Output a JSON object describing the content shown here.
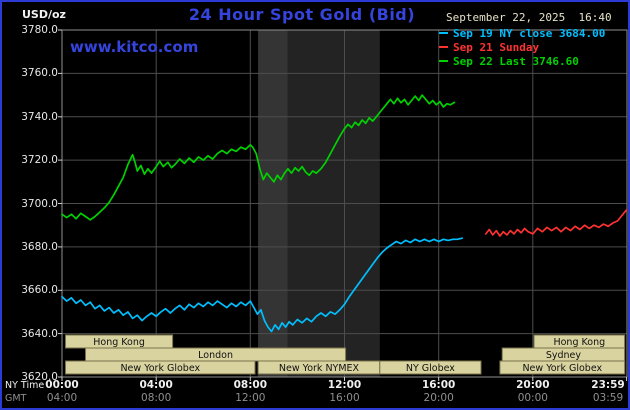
{
  "header": {
    "unit_label": "USD/oz",
    "title": "24 Hour Spot Gold (Bid)",
    "datetime": "September 22, 2025  16:40",
    "watermark": "www.kitco.com",
    "legend": [
      {
        "label": "Sep 19 NY close 3684.00",
        "color": "#00bfff"
      },
      {
        "label": "Sep 21 Sunday",
        "color": "#ff3232"
      },
      {
        "label": "Sep 22 Last 3746.60",
        "color": "#00d200"
      }
    ]
  },
  "axes": {
    "ny_time_label": "NY Time",
    "gmt_label": "GMT",
    "x_ticks_ny": [
      "00:00",
      "04:00",
      "08:00",
      "12:00",
      "16:00",
      "20:00",
      "23:59"
    ],
    "x_ticks_gmt": [
      "04:00",
      "08:00",
      "12:00",
      "16:00",
      "20:00",
      "00:00",
      "03:59"
    ],
    "x_tick_hours": [
      0,
      4,
      8,
      12,
      16,
      20,
      23.983
    ],
    "y_ticks": [
      "3780.0",
      "3760.0",
      "3740.0",
      "3720.0",
      "3700.0",
      "3680.0",
      "3660.0",
      "3640.0",
      "3620.0"
    ],
    "y_tick_values": [
      3780,
      3760,
      3740,
      3720,
      3700,
      3680,
      3660,
      3640,
      3620
    ]
  },
  "chart_data": {
    "type": "line",
    "title": "24 Hour Spot Gold (Bid)",
    "x_axis": {
      "label": "NY Time",
      "range_hours": [
        0,
        24
      ],
      "gridline_hours": [
        4,
        8,
        12,
        16,
        20
      ]
    },
    "y_axis": {
      "label": "USD/oz",
      "range": [
        3620,
        3780
      ],
      "tick_step": 20,
      "gridlines": [
        3760,
        3740,
        3720,
        3700,
        3680,
        3660,
        3640
      ]
    },
    "grid": true,
    "legend_position": "top-right",
    "shaded_bands_hours": [
      [
        8.33,
        13.5
      ],
      [
        8.33,
        9.58
      ]
    ],
    "shaded_band_colors": [
      "#232323",
      "#343434"
    ],
    "session_fill": "#d9d3a0",
    "sessions": [
      {
        "row": 1,
        "start": 0.15,
        "end": 4.7,
        "label": "Hong Kong"
      },
      {
        "row": 2,
        "start": 1.0,
        "end": 12.05,
        "label": "London"
      },
      {
        "row": 3,
        "start": 0.15,
        "end": 8.2,
        "label": "New York Globex"
      },
      {
        "row": 3,
        "start": 8.33,
        "end": 13.5,
        "label": "New York NYMEX"
      },
      {
        "row": 3,
        "start": 13.5,
        "end": 17.8,
        "label": "NY Globex"
      },
      {
        "row": 2,
        "start": 18.7,
        "end": 23.9,
        "label": "Sydney"
      },
      {
        "row": 1,
        "start": 20.05,
        "end": 23.9,
        "label": "Hong Kong"
      },
      {
        "row": 3,
        "start": 18.6,
        "end": 23.9,
        "label": "New York Globex"
      }
    ],
    "series": [
      {
        "name": "Sep 19 NY close 3684.00",
        "close": 3684.0,
        "color": "#00bfff",
        "points": [
          [
            0,
            3657
          ],
          [
            0.2,
            3655
          ],
          [
            0.4,
            3656.5
          ],
          [
            0.6,
            3654
          ],
          [
            0.8,
            3655.5
          ],
          [
            1,
            3653
          ],
          [
            1.2,
            3654.5
          ],
          [
            1.4,
            3651.5
          ],
          [
            1.6,
            3653
          ],
          [
            1.8,
            3650.5
          ],
          [
            2,
            3652
          ],
          [
            2.2,
            3649.5
          ],
          [
            2.4,
            3651
          ],
          [
            2.6,
            3648.5
          ],
          [
            2.8,
            3650
          ],
          [
            3,
            3647
          ],
          [
            3.2,
            3648.5
          ],
          [
            3.4,
            3646
          ],
          [
            3.6,
            3648
          ],
          [
            3.8,
            3649.5
          ],
          [
            4,
            3648
          ],
          [
            4.2,
            3650
          ],
          [
            4.4,
            3651.5
          ],
          [
            4.6,
            3649.5
          ],
          [
            4.8,
            3651.5
          ],
          [
            5,
            3653
          ],
          [
            5.2,
            3651
          ],
          [
            5.4,
            3653.5
          ],
          [
            5.6,
            3652
          ],
          [
            5.8,
            3654
          ],
          [
            6,
            3652.5
          ],
          [
            6.2,
            3654.5
          ],
          [
            6.4,
            3653
          ],
          [
            6.6,
            3655
          ],
          [
            6.8,
            3653.5
          ],
          [
            7,
            3652
          ],
          [
            7.2,
            3654
          ],
          [
            7.4,
            3652.5
          ],
          [
            7.6,
            3654.5
          ],
          [
            7.8,
            3653
          ],
          [
            8,
            3655
          ],
          [
            8.15,
            3652
          ],
          [
            8.3,
            3649
          ],
          [
            8.45,
            3651
          ],
          [
            8.6,
            3646
          ],
          [
            8.75,
            3643
          ],
          [
            8.9,
            3641
          ],
          [
            9.05,
            3644
          ],
          [
            9.2,
            3642
          ],
          [
            9.35,
            3645
          ],
          [
            9.5,
            3643
          ],
          [
            9.65,
            3645.5
          ],
          [
            9.8,
            3644
          ],
          [
            10,
            3646.5
          ],
          [
            10.2,
            3645
          ],
          [
            10.4,
            3647
          ],
          [
            10.6,
            3645.5
          ],
          [
            10.8,
            3648
          ],
          [
            11,
            3649.5
          ],
          [
            11.2,
            3648
          ],
          [
            11.4,
            3650
          ],
          [
            11.6,
            3649
          ],
          [
            11.8,
            3651
          ],
          [
            12,
            3653.5
          ],
          [
            12.2,
            3657
          ],
          [
            12.4,
            3660
          ],
          [
            12.6,
            3663
          ],
          [
            12.8,
            3666
          ],
          [
            13,
            3669
          ],
          [
            13.2,
            3672
          ],
          [
            13.4,
            3675
          ],
          [
            13.6,
            3677.5
          ],
          [
            13.8,
            3679.5
          ],
          [
            14,
            3681
          ],
          [
            14.2,
            3682.5
          ],
          [
            14.4,
            3681.5
          ],
          [
            14.6,
            3683
          ],
          [
            14.8,
            3682
          ],
          [
            15,
            3683.5
          ],
          [
            15.2,
            3682.5
          ],
          [
            15.4,
            3683.5
          ],
          [
            15.6,
            3682.5
          ],
          [
            15.8,
            3683.5
          ],
          [
            16,
            3682.5
          ],
          [
            16.2,
            3683.5
          ],
          [
            16.4,
            3683
          ],
          [
            16.6,
            3683.5
          ],
          [
            16.8,
            3683.5
          ],
          [
            17,
            3684
          ]
        ]
      },
      {
        "name": "Sep 21 Sunday",
        "color": "#ff3232",
        "points": [
          [
            18,
            3686
          ],
          [
            18.15,
            3688
          ],
          [
            18.3,
            3685.5
          ],
          [
            18.45,
            3687.5
          ],
          [
            18.6,
            3685
          ],
          [
            18.75,
            3687
          ],
          [
            18.9,
            3685.5
          ],
          [
            19.05,
            3687.5
          ],
          [
            19.2,
            3686
          ],
          [
            19.35,
            3688
          ],
          [
            19.5,
            3686.5
          ],
          [
            19.65,
            3688.5
          ],
          [
            19.8,
            3687
          ],
          [
            20,
            3686
          ],
          [
            20.2,
            3688.5
          ],
          [
            20.4,
            3687
          ],
          [
            20.6,
            3689
          ],
          [
            20.8,
            3687.5
          ],
          [
            21,
            3689
          ],
          [
            21.2,
            3687
          ],
          [
            21.4,
            3689
          ],
          [
            21.6,
            3687.5
          ],
          [
            21.8,
            3689.5
          ],
          [
            22,
            3688
          ],
          [
            22.2,
            3690
          ],
          [
            22.4,
            3688.5
          ],
          [
            22.6,
            3690
          ],
          [
            22.8,
            3689
          ],
          [
            23,
            3690.5
          ],
          [
            23.2,
            3689.5
          ],
          [
            23.4,
            3691
          ],
          [
            23.6,
            3692
          ],
          [
            23.75,
            3694
          ],
          [
            23.9,
            3696
          ],
          [
            23.98,
            3697
          ]
        ]
      },
      {
        "name": "Sep 22 Last 3746.60",
        "last": 3746.6,
        "color": "#00d200",
        "points": [
          [
            0,
            3695
          ],
          [
            0.2,
            3693.5
          ],
          [
            0.4,
            3695
          ],
          [
            0.6,
            3693
          ],
          [
            0.8,
            3695.5
          ],
          [
            1,
            3694
          ],
          [
            1.2,
            3692.5
          ],
          [
            1.4,
            3694
          ],
          [
            1.6,
            3696
          ],
          [
            1.8,
            3698
          ],
          [
            2,
            3700.5
          ],
          [
            2.2,
            3704
          ],
          [
            2.4,
            3708
          ],
          [
            2.6,
            3712
          ],
          [
            2.8,
            3718
          ],
          [
            3,
            3722.5
          ],
          [
            3.1,
            3719
          ],
          [
            3.2,
            3715
          ],
          [
            3.35,
            3717.5
          ],
          [
            3.5,
            3713.5
          ],
          [
            3.65,
            3716
          ],
          [
            3.8,
            3714
          ],
          [
            4,
            3717
          ],
          [
            4.15,
            3719.5
          ],
          [
            4.3,
            3717
          ],
          [
            4.5,
            3719
          ],
          [
            4.65,
            3716.5
          ],
          [
            4.8,
            3718
          ],
          [
            5,
            3720.5
          ],
          [
            5.2,
            3718.5
          ],
          [
            5.4,
            3721
          ],
          [
            5.6,
            3719
          ],
          [
            5.8,
            3721.5
          ],
          [
            6,
            3720
          ],
          [
            6.2,
            3722
          ],
          [
            6.4,
            3720.5
          ],
          [
            6.6,
            3723
          ],
          [
            6.8,
            3724.5
          ],
          [
            7,
            3723
          ],
          [
            7.2,
            3725
          ],
          [
            7.4,
            3724
          ],
          [
            7.6,
            3726
          ],
          [
            7.8,
            3725
          ],
          [
            8,
            3727
          ],
          [
            8.1,
            3726
          ],
          [
            8.25,
            3723
          ],
          [
            8.4,
            3716
          ],
          [
            8.55,
            3711
          ],
          [
            8.7,
            3714
          ],
          [
            8.85,
            3712
          ],
          [
            9,
            3710
          ],
          [
            9.15,
            3713
          ],
          [
            9.3,
            3711
          ],
          [
            9.45,
            3714
          ],
          [
            9.6,
            3716
          ],
          [
            9.75,
            3714
          ],
          [
            9.9,
            3716.5
          ],
          [
            10.05,
            3715
          ],
          [
            10.2,
            3717
          ],
          [
            10.35,
            3714.5
          ],
          [
            10.5,
            3713
          ],
          [
            10.65,
            3715
          ],
          [
            10.8,
            3714
          ],
          [
            11,
            3716
          ],
          [
            11.2,
            3719
          ],
          [
            11.4,
            3723
          ],
          [
            11.6,
            3727
          ],
          [
            11.8,
            3731
          ],
          [
            12,
            3734.5
          ],
          [
            12.15,
            3736.5
          ],
          [
            12.3,
            3735
          ],
          [
            12.45,
            3737.5
          ],
          [
            12.6,
            3736
          ],
          [
            12.75,
            3738.5
          ],
          [
            12.9,
            3737
          ],
          [
            13.05,
            3739.5
          ],
          [
            13.2,
            3738
          ],
          [
            13.35,
            3740
          ],
          [
            13.5,
            3742
          ],
          [
            13.65,
            3744
          ],
          [
            13.8,
            3746
          ],
          [
            13.95,
            3748
          ],
          [
            14.1,
            3746
          ],
          [
            14.25,
            3748.5
          ],
          [
            14.4,
            3746.5
          ],
          [
            14.55,
            3748
          ],
          [
            14.7,
            3745.5
          ],
          [
            14.85,
            3747.5
          ],
          [
            15,
            3749.5
          ],
          [
            15.15,
            3747.5
          ],
          [
            15.3,
            3750
          ],
          [
            15.45,
            3748
          ],
          [
            15.6,
            3746
          ],
          [
            15.75,
            3747.5
          ],
          [
            15.9,
            3745.5
          ],
          [
            16.05,
            3747
          ],
          [
            16.2,
            3744.5
          ],
          [
            16.35,
            3746
          ],
          [
            16.5,
            3745.5
          ],
          [
            16.67,
            3746.6
          ]
        ]
      }
    ]
  }
}
